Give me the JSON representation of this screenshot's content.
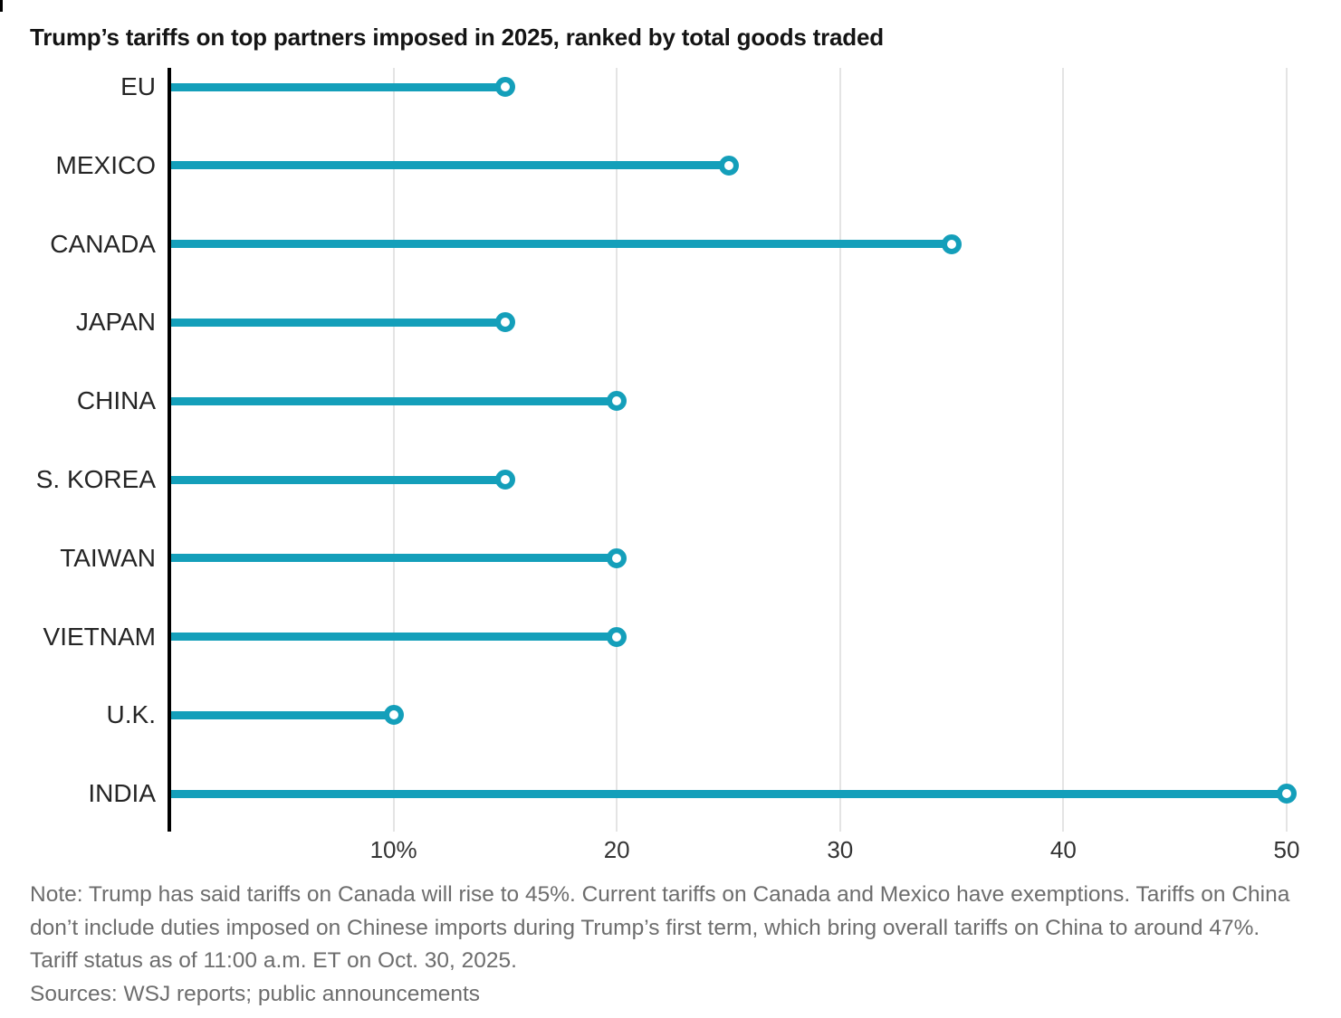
{
  "title": "Trump’s tariffs on top partners imposed in 2025, ranked by total goods traded",
  "chart_data": {
    "type": "bar",
    "variant": "horizontal-lollipop",
    "title": "Trump’s tariffs on top partners imposed in 2025, ranked by total goods traded",
    "categories": [
      "EU",
      "MEXICO",
      "CANADA",
      "JAPAN",
      "CHINA",
      "S. KOREA",
      "TAIWAN",
      "VIETNAM",
      "U.K.",
      "INDIA"
    ],
    "values": [
      15,
      25,
      35,
      15,
      20,
      15,
      20,
      20,
      10,
      50
    ],
    "value_unit": "%",
    "xlim": [
      0,
      50
    ],
    "x_ticks": [
      {
        "value": 10,
        "label": "10%"
      },
      {
        "value": 20,
        "label": "20"
      },
      {
        "value": 30,
        "label": "30"
      },
      {
        "value": 40,
        "label": "40"
      },
      {
        "value": 50,
        "label": "50"
      }
    ],
    "grid": "vertical-gridlines-on",
    "legend": "none",
    "accent_color": "#149FBA",
    "axis_color": "#000000",
    "gridline_color": "#e4e4e4"
  },
  "notes": {
    "note": "Note: Trump has said tariffs on Canada will rise to 45%. Current tariffs on Canada and Mexico have exemptions. Tariffs on China don’t include duties imposed on Chinese imports during Trump’s first term, which bring overall tariffs on China to around 47%. Tariff status as of 11:00 a.m. ET on Oct. 30, 2025.",
    "sources": "Sources: WSJ reports; public announcements"
  }
}
